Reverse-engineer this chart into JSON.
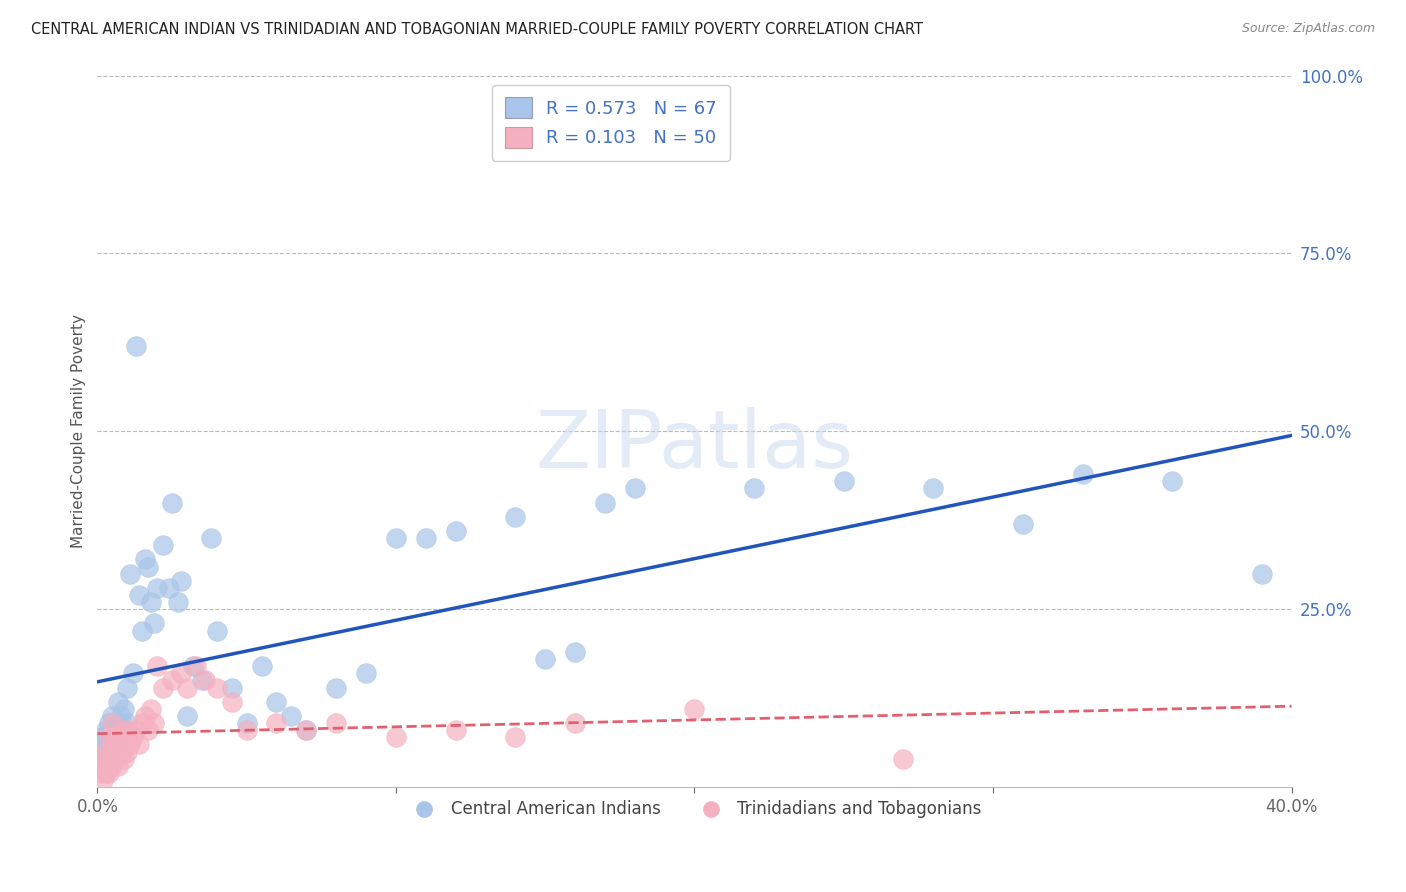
{
  "title": "CENTRAL AMERICAN INDIAN VS TRINIDADIAN AND TOBAGONIAN MARRIED-COUPLE FAMILY POVERTY CORRELATION CHART",
  "source": "Source: ZipAtlas.com",
  "ylabel": "Married-Couple Family Poverty",
  "blue_R": 0.573,
  "blue_N": 67,
  "pink_R": 0.103,
  "pink_N": 50,
  "blue_color": "#a8c4e8",
  "pink_color": "#f4b0c0",
  "blue_line_color": "#2255bb",
  "pink_line_color": "#e06070",
  "legend_label_blue": "Central American Indians",
  "legend_label_pink": "Trinidadians and Tobagonians",
  "xlim": [
    0,
    0.4
  ],
  "ylim": [
    0,
    1.0
  ],
  "blue_scatter_x": [
    0.001,
    0.001,
    0.002,
    0.002,
    0.003,
    0.003,
    0.003,
    0.004,
    0.004,
    0.004,
    0.005,
    0.005,
    0.005,
    0.006,
    0.006,
    0.007,
    0.007,
    0.007,
    0.008,
    0.008,
    0.009,
    0.009,
    0.01,
    0.01,
    0.011,
    0.012,
    0.013,
    0.014,
    0.015,
    0.016,
    0.017,
    0.018,
    0.019,
    0.02,
    0.022,
    0.024,
    0.025,
    0.027,
    0.028,
    0.03,
    0.032,
    0.035,
    0.038,
    0.04,
    0.045,
    0.05,
    0.055,
    0.06,
    0.065,
    0.07,
    0.08,
    0.09,
    0.1,
    0.11,
    0.12,
    0.14,
    0.15,
    0.16,
    0.17,
    0.18,
    0.22,
    0.25,
    0.28,
    0.31,
    0.33,
    0.36,
    0.39
  ],
  "blue_scatter_y": [
    0.03,
    0.06,
    0.04,
    0.07,
    0.02,
    0.05,
    0.08,
    0.03,
    0.06,
    0.09,
    0.04,
    0.07,
    0.1,
    0.05,
    0.08,
    0.06,
    0.09,
    0.12,
    0.07,
    0.1,
    0.08,
    0.11,
    0.09,
    0.14,
    0.3,
    0.16,
    0.62,
    0.27,
    0.22,
    0.32,
    0.31,
    0.26,
    0.23,
    0.28,
    0.34,
    0.28,
    0.4,
    0.26,
    0.29,
    0.1,
    0.17,
    0.15,
    0.35,
    0.22,
    0.14,
    0.09,
    0.17,
    0.12,
    0.1,
    0.08,
    0.14,
    0.16,
    0.35,
    0.35,
    0.36,
    0.38,
    0.18,
    0.19,
    0.4,
    0.42,
    0.42,
    0.43,
    0.42,
    0.37,
    0.44,
    0.43,
    0.3
  ],
  "pink_scatter_x": [
    0.001,
    0.001,
    0.002,
    0.002,
    0.003,
    0.003,
    0.004,
    0.004,
    0.004,
    0.005,
    0.005,
    0.005,
    0.006,
    0.006,
    0.007,
    0.007,
    0.008,
    0.008,
    0.009,
    0.009,
    0.01,
    0.01,
    0.011,
    0.012,
    0.013,
    0.014,
    0.015,
    0.016,
    0.017,
    0.018,
    0.019,
    0.02,
    0.022,
    0.025,
    0.028,
    0.03,
    0.033,
    0.036,
    0.04,
    0.045,
    0.05,
    0.06,
    0.07,
    0.08,
    0.1,
    0.12,
    0.14,
    0.16,
    0.2,
    0.27
  ],
  "pink_scatter_y": [
    0.02,
    0.04,
    0.01,
    0.03,
    0.02,
    0.05,
    0.02,
    0.04,
    0.07,
    0.03,
    0.06,
    0.09,
    0.04,
    0.07,
    0.03,
    0.06,
    0.05,
    0.08,
    0.04,
    0.07,
    0.05,
    0.08,
    0.06,
    0.07,
    0.08,
    0.06,
    0.09,
    0.1,
    0.08,
    0.11,
    0.09,
    0.17,
    0.14,
    0.15,
    0.16,
    0.14,
    0.17,
    0.15,
    0.14,
    0.12,
    0.08,
    0.09,
    0.08,
    0.09,
    0.07,
    0.08,
    0.07,
    0.09,
    0.11,
    0.04
  ]
}
